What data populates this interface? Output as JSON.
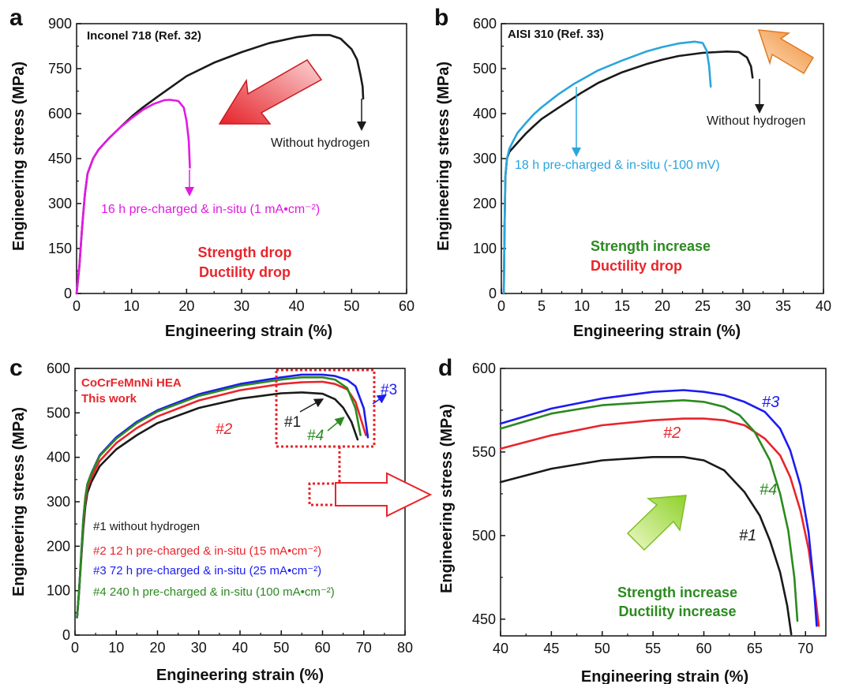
{
  "colors": {
    "black": "#1a1a1a",
    "magenta": "#e21ae2",
    "cyan": "#2aa5dc",
    "red": "#e8252b",
    "blue": "#1c1cf2",
    "green": "#2b8a1f",
    "orange": "#f39b4a",
    "lightgreen": "#9bd63a"
  },
  "chart_data": [
    {
      "panel": "a",
      "type": "line",
      "title": "Inconel 718 (Ref. 32)",
      "xlabel": "Engineering strain (%)",
      "ylabel": "Engineering stress (MPa)",
      "xlim": [
        0,
        60
      ],
      "ylim": [
        0,
        900
      ],
      "xticks": [
        0,
        10,
        20,
        30,
        40,
        50,
        60
      ],
      "yticks": [
        0,
        150,
        300,
        450,
        600,
        750,
        900
      ],
      "series": [
        {
          "name": "Without hydrogen",
          "color": "black",
          "x": [
            0,
            0.5,
            1,
            1.5,
            2,
            3,
            4,
            6,
            8,
            10,
            12,
            15,
            20,
            25,
            30,
            35,
            40,
            43,
            46,
            48,
            50,
            51,
            51.6,
            52,
            52.1
          ],
          "y": [
            0,
            90,
            220,
            330,
            400,
            450,
            480,
            520,
            555,
            590,
            620,
            660,
            725,
            770,
            805,
            835,
            855,
            862,
            862,
            850,
            815,
            780,
            730,
            690,
            650
          ]
        },
        {
          "name": "16 h pre-charged & in-situ (1 mA•cm⁻²)",
          "color": "magenta",
          "x": [
            0,
            0.5,
            1,
            1.5,
            2,
            3,
            4,
            6,
            8,
            10,
            12,
            14,
            16,
            17,
            18.5,
            19.5,
            20,
            20.4,
            20.6
          ],
          "y": [
            0,
            90,
            220,
            330,
            400,
            450,
            480,
            520,
            555,
            585,
            612,
            632,
            645,
            646,
            642,
            620,
            575,
            510,
            420
          ]
        }
      ],
      "annotations": [
        "Without hydrogen",
        "16 h pre-charged & in-situ (1 mA•cm⁻²)",
        "Strength drop",
        "Ductility drop"
      ]
    },
    {
      "panel": "b",
      "type": "line",
      "title": "AISI 310 (Ref. 33)",
      "xlabel": "Engineering strain (%)",
      "ylabel": "Engineering stress (MPa)",
      "xlim": [
        0,
        40
      ],
      "ylim": [
        0,
        600
      ],
      "xticks": [
        0,
        5,
        10,
        15,
        20,
        25,
        30,
        35,
        40
      ],
      "yticks": [
        0,
        100,
        200,
        300,
        400,
        500,
        600
      ],
      "series": [
        {
          "name": "Without hydrogen",
          "color": "black",
          "x": [
            0.3,
            0.4,
            0.5,
            0.7,
            1,
            1.5,
            2,
            3,
            4,
            5,
            7,
            10,
            12,
            15,
            18,
            20,
            22,
            25,
            28,
            29.5,
            30.5,
            31,
            31.2
          ],
          "y": [
            0,
            150,
            260,
            300,
            315,
            325,
            335,
            355,
            372,
            388,
            412,
            447,
            468,
            492,
            510,
            520,
            528,
            535,
            538,
            537,
            525,
            505,
            480
          ]
        },
        {
          "name": "18 h pre-charged & in-situ (-100 mV)",
          "color": "cyan",
          "x": [
            0.3,
            0.4,
            0.5,
            0.7,
            1,
            1.5,
            2,
            3,
            4,
            5,
            7,
            9,
            10,
            12,
            15,
            18,
            20,
            22,
            24,
            25,
            25.5,
            25.8,
            26
          ],
          "y": [
            0,
            150,
            260,
            300,
            322,
            340,
            357,
            378,
            398,
            414,
            442,
            466,
            476,
            496,
            518,
            538,
            548,
            556,
            560,
            557,
            540,
            505,
            460
          ]
        }
      ],
      "annotations": [
        "Without hydrogen",
        "18 h pre-charged & in-situ (-100 mV)",
        "Strength increase",
        "Ductility drop"
      ]
    },
    {
      "panel": "c",
      "type": "line",
      "title": "CoCrFeMnNi HEA",
      "subtitle": "This work",
      "xlabel": "Engineering strain (%)",
      "ylabel": "Engineering stress (MPa)",
      "xlim": [
        0,
        80
      ],
      "ylim": [
        0,
        600
      ],
      "xticks": [
        0,
        10,
        20,
        30,
        40,
        50,
        60,
        70,
        80
      ],
      "yticks": [
        0,
        100,
        200,
        300,
        400,
        500,
        600
      ],
      "series": [
        {
          "name": "#1 without hydrogen",
          "label": "#1",
          "color": "black",
          "x": [
            0.5,
            1,
            1.5,
            2,
            2.5,
            3,
            4,
            6,
            10,
            15,
            20,
            30,
            40,
            50,
            55,
            60,
            63,
            65,
            67,
            68.5
          ],
          "y": [
            40,
            100,
            170,
            240,
            290,
            320,
            345,
            380,
            418,
            450,
            477,
            511,
            532,
            544,
            546,
            543,
            531,
            512,
            480,
            440
          ]
        },
        {
          "name": "#2 12 h pre-charged & in-situ (15  mA•cm⁻²)",
          "label": "#2",
          "color": "red",
          "x": [
            0.5,
            1,
            1.5,
            2,
            2.5,
            3,
            4,
            6,
            10,
            15,
            20,
            30,
            40,
            50,
            55,
            60,
            63,
            66,
            68,
            70.5
          ],
          "y": [
            40,
            100,
            175,
            250,
            300,
            330,
            355,
            392,
            432,
            466,
            492,
            528,
            551,
            565,
            569,
            570,
            565,
            553,
            525,
            450
          ]
        },
        {
          "name": "#3 72 h pre-charged & in-situ (25 mA•cm⁻²)",
          "label": "#3",
          "color": "blue",
          "x": [
            0.5,
            1,
            1.5,
            2,
            2.5,
            3,
            4,
            6,
            10,
            15,
            20,
            30,
            40,
            50,
            55,
            60,
            63,
            66,
            68,
            70,
            71
          ],
          "y": [
            40,
            100,
            180,
            260,
            310,
            340,
            365,
            405,
            445,
            480,
            506,
            542,
            565,
            580,
            586,
            586,
            583,
            574,
            560,
            510,
            445
          ]
        },
        {
          "name": "#4 240 h pre-charged & in-situ (100 mA•cm⁻²)",
          "label": "#4",
          "color": "green",
          "x": [
            0.5,
            1,
            1.5,
            2,
            2.5,
            3,
            4,
            6,
            10,
            15,
            20,
            30,
            40,
            50,
            55,
            60,
            63,
            66,
            68,
            69.2
          ],
          "y": [
            40,
            100,
            180,
            260,
            310,
            340,
            364,
            403,
            442,
            477,
            503,
            538,
            561,
            575,
            580,
            580,
            575,
            556,
            510,
            450
          ]
        }
      ]
    },
    {
      "panel": "d",
      "type": "line",
      "xlabel": "Engineering strain (%)",
      "ylabel": "Engineering stress (MPa)",
      "xlim": [
        40,
        72
      ],
      "ylim": [
        440,
        600
      ],
      "xticks": [
        40,
        45,
        50,
        55,
        60,
        65,
        70
      ],
      "yticks": [
        450,
        500,
        550,
        600
      ],
      "series": [
        {
          "label": "#1",
          "color": "black",
          "x": [
            40,
            45,
            50,
            55,
            58,
            60,
            62,
            64,
            65.5,
            66.5,
            67.5,
            68.2,
            68.6
          ],
          "y": [
            532,
            540,
            545,
            547,
            547,
            545,
            539,
            526,
            512,
            497,
            478,
            458,
            441
          ]
        },
        {
          "label": "#2",
          "color": "red",
          "x": [
            40,
            45,
            50,
            55,
            58,
            60,
            62,
            64,
            66,
            67.5,
            68.5,
            69.5,
            70.3,
            71,
            71.3
          ],
          "y": [
            552,
            560,
            566,
            569,
            570,
            570,
            569,
            566,
            558,
            548,
            535,
            515,
            492,
            462,
            446
          ]
        },
        {
          "label": "#3",
          "color": "blue",
          "x": [
            40,
            45,
            50,
            55,
            58,
            60,
            62,
            64,
            66,
            67.5,
            68.5,
            69.5,
            70.3,
            70.8,
            71.1
          ],
          "y": [
            567,
            576,
            582,
            586,
            587,
            586,
            584,
            580,
            574,
            564,
            551,
            530,
            502,
            472,
            446
          ]
        },
        {
          "label": "#4",
          "color": "green",
          "x": [
            40,
            45,
            50,
            55,
            58,
            60,
            62,
            63.5,
            65,
            66.5,
            67.5,
            68.3,
            68.9,
            69.2
          ],
          "y": [
            564,
            573,
            578,
            580,
            581,
            580,
            577,
            572,
            562,
            545,
            525,
            503,
            475,
            449
          ]
        }
      ],
      "annotations": [
        "Strength increase",
        "Ductility increase"
      ]
    }
  ]
}
